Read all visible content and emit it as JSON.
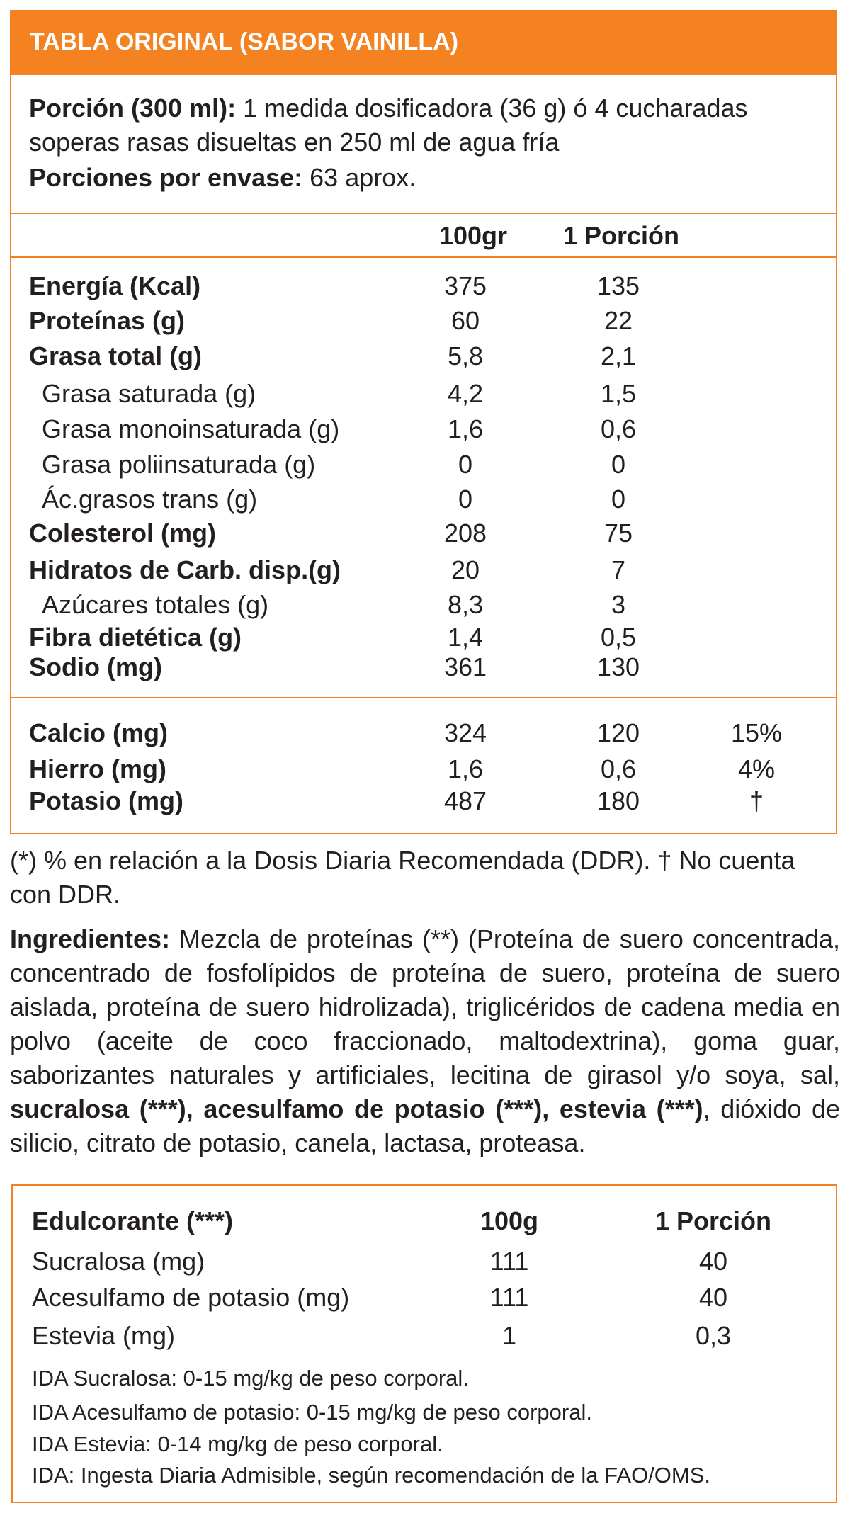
{
  "title": "TABLA ORIGINAL (SABOR VAINILLA)",
  "serving": {
    "label": "Porción (300 ml):",
    "text": "1 medida dosificadora (36 g) ó 4 cucharadas soperas rasas disueltas en 250 ml de agua fría"
  },
  "servings_per_container": {
    "label": "Porciones por envase:",
    "text": "63 aprox."
  },
  "nutrition": {
    "headers": [
      "100gr",
      "1 Porción"
    ],
    "rows": [
      [
        "Energía (Kcal)",
        "375",
        "135"
      ],
      [
        "Proteínas (g)",
        "60",
        "22"
      ],
      [
        "Grasa total (g)",
        "5,8",
        "2,1"
      ],
      [
        "Grasa saturada (g)",
        "4,2",
        "1,5"
      ],
      [
        "Grasa monoinsaturada (g)",
        "1,6",
        "0,6"
      ],
      [
        "Grasa poliinsaturada (g)",
        "0",
        "0"
      ],
      [
        "Ác.grasos trans (g)",
        "0",
        "0"
      ],
      [
        "Colesterol (mg)",
        "208",
        "75"
      ],
      [
        "Hidratos de Carb. disp.(g)",
        "20",
        "7"
      ],
      [
        "Azúcares totales (g)",
        "8,3",
        "3"
      ],
      [
        "Fibra dietética (g)",
        "1,4",
        "0,5"
      ],
      [
        "Sodio (mg)",
        "361",
        "130"
      ]
    ],
    "minerals": [
      [
        "Calcio (mg)",
        "324",
        "120",
        "15%"
      ],
      [
        "Hierro (mg)",
        "1,6",
        "0,6",
        "4%"
      ],
      [
        "Potasio (mg)",
        "487",
        "180",
        "†"
      ]
    ]
  },
  "footnote": "(*) % en relación a la Dosis Diaria Recomendada (DDR). † No cuenta con DDR.",
  "ingredients": {
    "label": "Ingredientes:",
    "text1": "Mezcla de proteínas (**) (Proteína de suero concentrada, concentrado de fosfolípidos de proteína de suero, proteína de suero aislada, proteína de suero hidrolizada), triglicéridos de cadena media en polvo (aceite de coco fraccionado, maltodextrina), goma guar, saborizantes naturales y artificiales, lecitina de girasol y/o soya, sal,",
    "bold": "sucralosa (***), acesulfamo de potasio (***), estevia (***)",
    "text2": ", dióxido de silicio, citrato de potasio, canela, lactasa, proteasa."
  },
  "sweeteners": {
    "headers": [
      "Edulcorante (***)",
      "100g",
      "1 Porción"
    ],
    "rows": [
      [
        "Sucralosa (mg)",
        "111",
        "40"
      ],
      [
        "Acesulfamo de potasio (mg)",
        "111",
        "40"
      ],
      [
        "Estevia (mg)",
        "1",
        "0,3"
      ]
    ],
    "notes": [
      "IDA Sucralosa: 0-15 mg/kg de peso corporal.",
      "IDA Acesulfamo de potasio: 0-15 mg/kg de peso corporal.",
      "IDA Estevia: 0-14 mg/kg de peso corporal.",
      "IDA: Ingesta Diaria Admisible, según recomendación de la FAO/OMS."
    ]
  }
}
